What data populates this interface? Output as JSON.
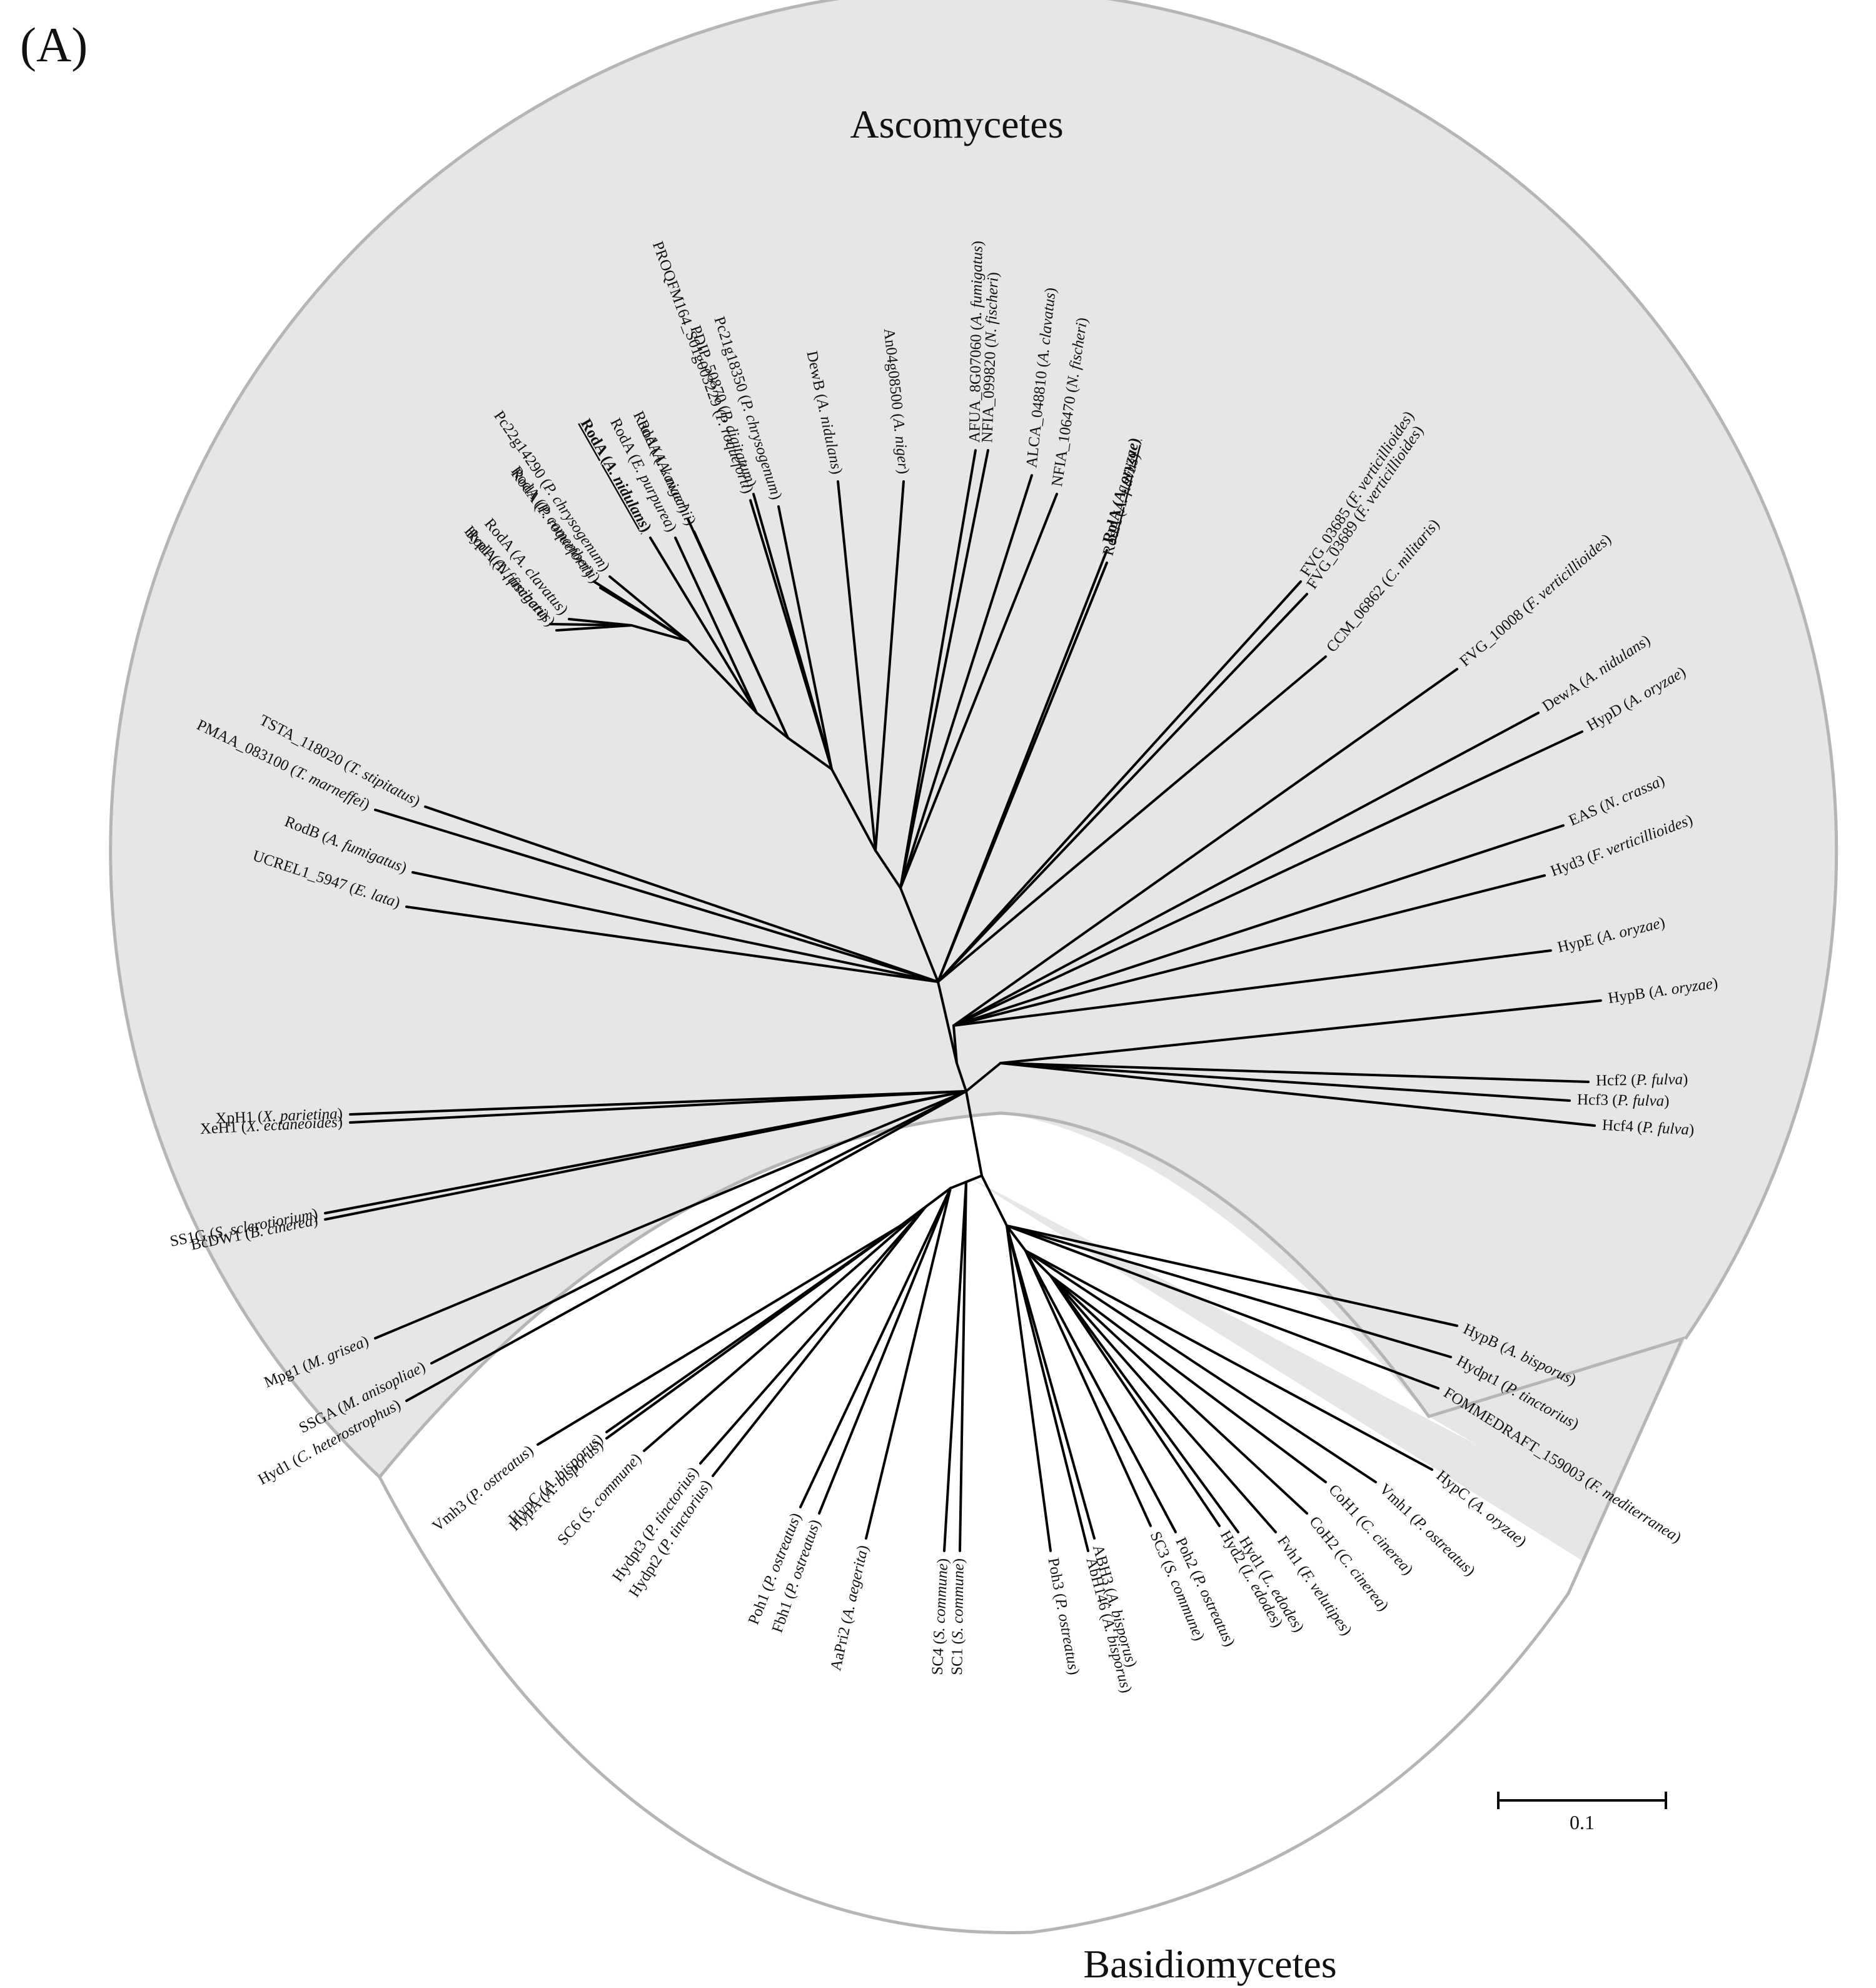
{
  "panel_label": "(A)",
  "groups": [
    {
      "name": "Ascomycetes",
      "fill": "#e6e6e6"
    },
    {
      "name": "Basidiomycetes",
      "fill": "#ffffff"
    }
  ],
  "scale_bar": {
    "label": "0.1",
    "length_units": 0.1
  },
  "colors": {
    "shade": "#e6e6e6",
    "ring": "#b5b5b5",
    "branch": "#000000"
  },
  "leaves": [
    {
      "id": "hyp1_afum",
      "gene": "Hyp1",
      "species": "A. fumigatus",
      "emphasis": false
    },
    {
      "id": "roda_nfis",
      "gene": "RodA",
      "species": "N. fischeri",
      "emphasis": false
    },
    {
      "id": "roda_acla",
      "gene": "RodA",
      "species": "A. clavatus",
      "emphasis": false
    },
    {
      "id": "roda_pcam",
      "gene": "RodA",
      "species": "P. camemberti",
      "emphasis": false
    },
    {
      "id": "roda_proq",
      "gene": "RodA",
      "species": "P. roqueforti",
      "emphasis": false
    },
    {
      "id": "pc22",
      "gene": "Pc22g14290",
      "species": "P. chrysogenum",
      "emphasis": false
    },
    {
      "id": "roda_anid",
      "gene": "RodA",
      "species": "A. nidulans",
      "emphasis": true
    },
    {
      "id": "roda_epur",
      "gene": "RodA",
      "species": "E. purpurea",
      "emphasis": false
    },
    {
      "id": "roda_akaw",
      "gene": "RodA",
      "species": "A. kawachii",
      "emphasis": false
    },
    {
      "id": "roda_anig",
      "gene": "RodA",
      "species": "A. niger",
      "emphasis": false
    },
    {
      "id": "proq",
      "gene": "PROQFM164_S01g003229",
      "species": "P. roqueforti",
      "emphasis": false
    },
    {
      "id": "pdip",
      "gene": "PDIP_50870",
      "species": "P. digitatum",
      "emphasis": false
    },
    {
      "id": "pc21",
      "gene": "Pc21g18350",
      "species": "P. chrysogenum",
      "emphasis": false
    },
    {
      "id": "dewb",
      "gene": "DewB",
      "species": "A. nidulans",
      "emphasis": false
    },
    {
      "id": "an04",
      "gene": "An04g08500",
      "species": "A. niger",
      "emphasis": false
    },
    {
      "id": "afua",
      "gene": "AFUA_8G07060",
      "species": "A. fumigatus",
      "emphasis": false
    },
    {
      "id": "nfia1",
      "gene": "NFIA_099820",
      "species": "N. fischeri",
      "emphasis": false
    },
    {
      "id": "alca",
      "gene": "ALCA_048810",
      "species": "A. clavatus",
      "emphasis": false
    },
    {
      "id": "nfia2",
      "gene": "NFIA_106470",
      "species": "N. fischeri",
      "emphasis": false
    },
    {
      "id": "roda_afla",
      "gene": "RodA",
      "species": "A. flavus",
      "emphasis": false
    },
    {
      "id": "rola_aory",
      "gene": "RolA",
      "species": "A. oryzae",
      "emphasis": true
    },
    {
      "id": "fvg03685",
      "gene": "FVG_03685",
      "species": "F. verticillioides",
      "emphasis": false
    },
    {
      "id": "fvg03689",
      "gene": "FVG_03689",
      "species": "F. verticillioides",
      "emphasis": false
    },
    {
      "id": "ccm",
      "gene": "CCM_06862",
      "species": "C. militaris",
      "emphasis": false
    },
    {
      "id": "fvg10008",
      "gene": "FVG_10008",
      "species": "F. verticillioides",
      "emphasis": false
    },
    {
      "id": "dewa",
      "gene": "DewA",
      "species": "A. nidulans",
      "emphasis": false
    },
    {
      "id": "hypd",
      "gene": "HypD",
      "species": "A. oryzae",
      "emphasis": false
    },
    {
      "id": "eas",
      "gene": "EAS",
      "species": "N. crassa",
      "emphasis": false
    },
    {
      "id": "hyd3",
      "gene": "Hyd3",
      "species": "F. verticillioides",
      "emphasis": false
    },
    {
      "id": "hype",
      "gene": "HypE",
      "species": "A. oryzae",
      "emphasis": false
    },
    {
      "id": "hypb_aory",
      "gene": "HypB",
      "species": "A. oryzae",
      "emphasis": false
    },
    {
      "id": "hcf2",
      "gene": "Hcf2",
      "species": "P. fulva",
      "emphasis": false
    },
    {
      "id": "hcf3",
      "gene": "Hcf3",
      "species": "P. fulva",
      "emphasis": false
    },
    {
      "id": "hcf4",
      "gene": "Hcf4",
      "species": "P. fulva",
      "emphasis": false
    },
    {
      "id": "hypb_abis",
      "gene": "HypB",
      "species": "A. bisporus",
      "emphasis": false
    },
    {
      "id": "hydpt1",
      "gene": "Hydpt1",
      "species": "P. tinctorius",
      "emphasis": false
    },
    {
      "id": "fommed",
      "gene": "FOMMEDRAFT_159003",
      "species": "F. mediterranea",
      "emphasis": false
    },
    {
      "id": "hypc_aory",
      "gene": "HypC",
      "species": "A. oryzae",
      "emphasis": false
    },
    {
      "id": "vmh1",
      "gene": "Vmh1",
      "species": "P. ostreatus",
      "emphasis": false
    },
    {
      "id": "coh1",
      "gene": "CoH1",
      "species": "C. cinerea",
      "emphasis": false
    },
    {
      "id": "coh2",
      "gene": "CoH2",
      "species": "C. cinerea",
      "emphasis": false
    },
    {
      "id": "fvh1",
      "gene": "Fvh1",
      "species": "F. velutipes",
      "emphasis": false
    },
    {
      "id": "hyd1_lede",
      "gene": "Hyd1",
      "species": "L. edodes",
      "emphasis": false
    },
    {
      "id": "hyd2_lede",
      "gene": "Hyd2",
      "species": "L. edodes",
      "emphasis": false
    },
    {
      "id": "poh2",
      "gene": "Poh2",
      "species": "P. ostreatus",
      "emphasis": false
    },
    {
      "id": "sc3",
      "gene": "SC3",
      "species": "S. commune",
      "emphasis": false
    },
    {
      "id": "abh3",
      "gene": "ABH3",
      "species": "A. bisporus",
      "emphasis": false
    },
    {
      "id": "abh146",
      "gene": "AbH146",
      "species": "A. bisporus",
      "emphasis": false
    },
    {
      "id": "poh3",
      "gene": "Poh3",
      "species": "P. ostreatus",
      "emphasis": false
    },
    {
      "id": "sc1",
      "gene": "SC1",
      "species": "S. commune",
      "emphasis": false
    },
    {
      "id": "sc4",
      "gene": "SC4",
      "species": "S. commune",
      "emphasis": false
    },
    {
      "id": "aapri2",
      "gene": "AaPri2",
      "species": "A. aegerita",
      "emphasis": false
    },
    {
      "id": "fbh1",
      "gene": "Fbh1",
      "species": "P. ostreatus",
      "emphasis": false
    },
    {
      "id": "poh1",
      "gene": "Poh1",
      "species": "P. ostreatus",
      "emphasis": false
    },
    {
      "id": "hydpt2",
      "gene": "Hydpt2",
      "species": "P. tinctorius",
      "emphasis": false
    },
    {
      "id": "hydpt3",
      "gene": "Hydpt3",
      "species": "P. tinctorius",
      "emphasis": false
    },
    {
      "id": "sc6",
      "gene": "SC6",
      "species": "S. commune",
      "emphasis": false
    },
    {
      "id": "hypa_abis",
      "gene": "HypA",
      "species": "A. bisporus",
      "emphasis": false
    },
    {
      "id": "hypc_abis",
      "gene": "HypC",
      "species": "A. bisporus",
      "emphasis": false
    },
    {
      "id": "vmh3",
      "gene": "Vmh3",
      "species": "P. ostreatus",
      "emphasis": false
    },
    {
      "id": "hyd1_chet",
      "gene": "Hyd1",
      "species": "C. heterostrophus",
      "emphasis": false
    },
    {
      "id": "ssga",
      "gene": "SSGA",
      "species": "M. anisopliae",
      "emphasis": false
    },
    {
      "id": "mpg1",
      "gene": "Mpg1",
      "species": "M. grisea",
      "emphasis": false
    },
    {
      "id": "bcdw1",
      "gene": "BcDW1",
      "species": "B. cinerea",
      "emphasis": false
    },
    {
      "id": "ss1g",
      "gene": "SS1G",
      "species": "S. sclerotiorium",
      "emphasis": false
    },
    {
      "id": "xeh1",
      "gene": "XeH1",
      "species": "X. ectaneoides",
      "emphasis": false
    },
    {
      "id": "xph1",
      "gene": "XpH1",
      "species": "X. parietina",
      "emphasis": false
    },
    {
      "id": "ucrel",
      "gene": "UCREL1_5947",
      "species": "E. lata",
      "emphasis": false
    },
    {
      "id": "rodb",
      "gene": "RodB",
      "species": "A. fumigatus",
      "emphasis": false
    },
    {
      "id": "pmaa",
      "gene": "PMAA_083100",
      "species": "T. marneffei",
      "emphasis": false
    },
    {
      "id": "tsta",
      "gene": "TSTA_118020",
      "species": "T. stipitatus",
      "emphasis": false
    }
  ]
}
